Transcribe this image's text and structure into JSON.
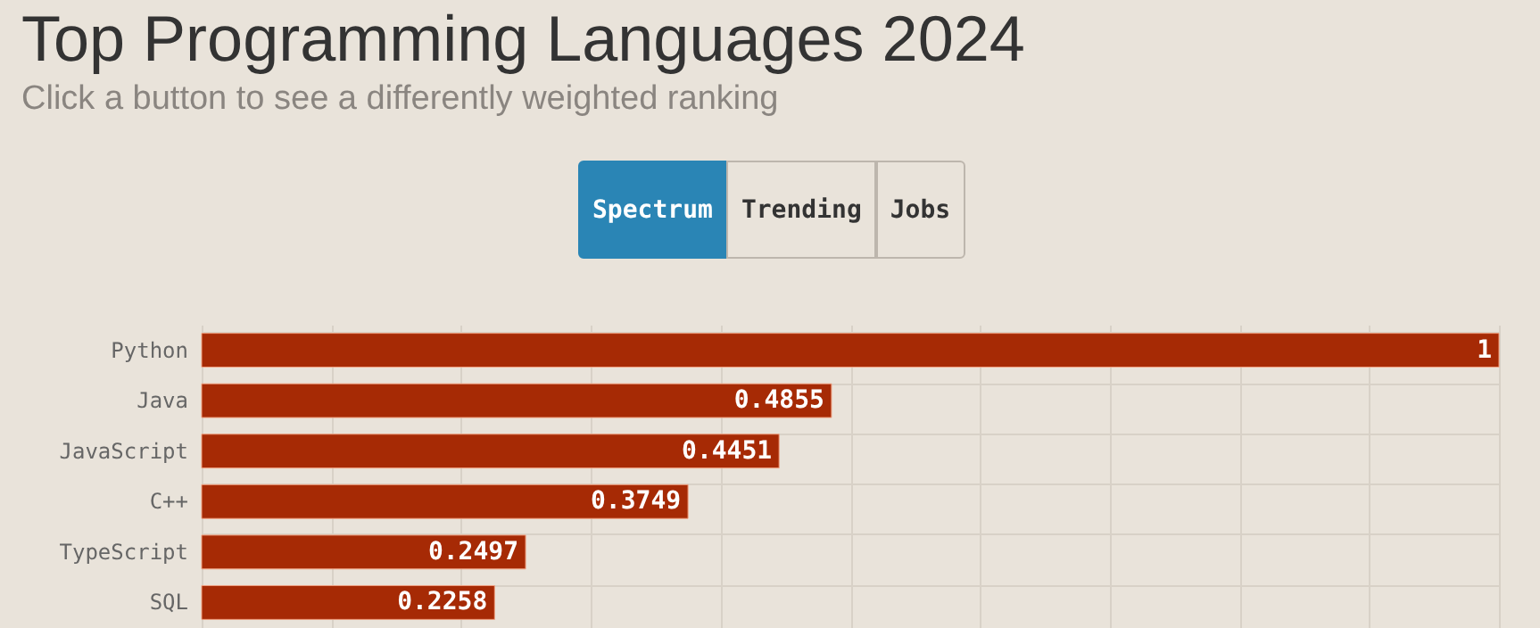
{
  "chart_data": {
    "type": "bar",
    "orientation": "horizontal",
    "title": "Top Programming Languages 2024",
    "subtitle": "Click a button to see a differently weighted ranking",
    "annotations": [
      "Spectrum",
      "Trending",
      "Jobs"
    ],
    "categories": [
      "Python",
      "Java",
      "JavaScript",
      "C++",
      "TypeScript",
      "SQL"
    ],
    "values": [
      1,
      0.4855,
      0.4451,
      0.3749,
      0.2497,
      0.2258
    ],
    "color": "#a62a05",
    "xlim": [
      0,
      1
    ],
    "xticks": [
      {
        "value": 0,
        "label": null
      },
      {
        "value": 0.1,
        "label": null
      },
      {
        "value": 0.2,
        "label": null
      },
      {
        "value": 0.3,
        "label": null
      },
      {
        "value": 0.4,
        "label": null
      },
      {
        "value": 0.5,
        "label": null
      },
      {
        "value": 0.6,
        "label": null
      },
      {
        "value": 0.7,
        "label": null
      },
      {
        "value": 0.8,
        "label": null
      },
      {
        "value": 0.9,
        "label": null
      },
      {
        "value": 1,
        "label": null
      }
    ],
    "grid": true,
    "data_labels": true,
    "tick_labels": "y"
  }
}
